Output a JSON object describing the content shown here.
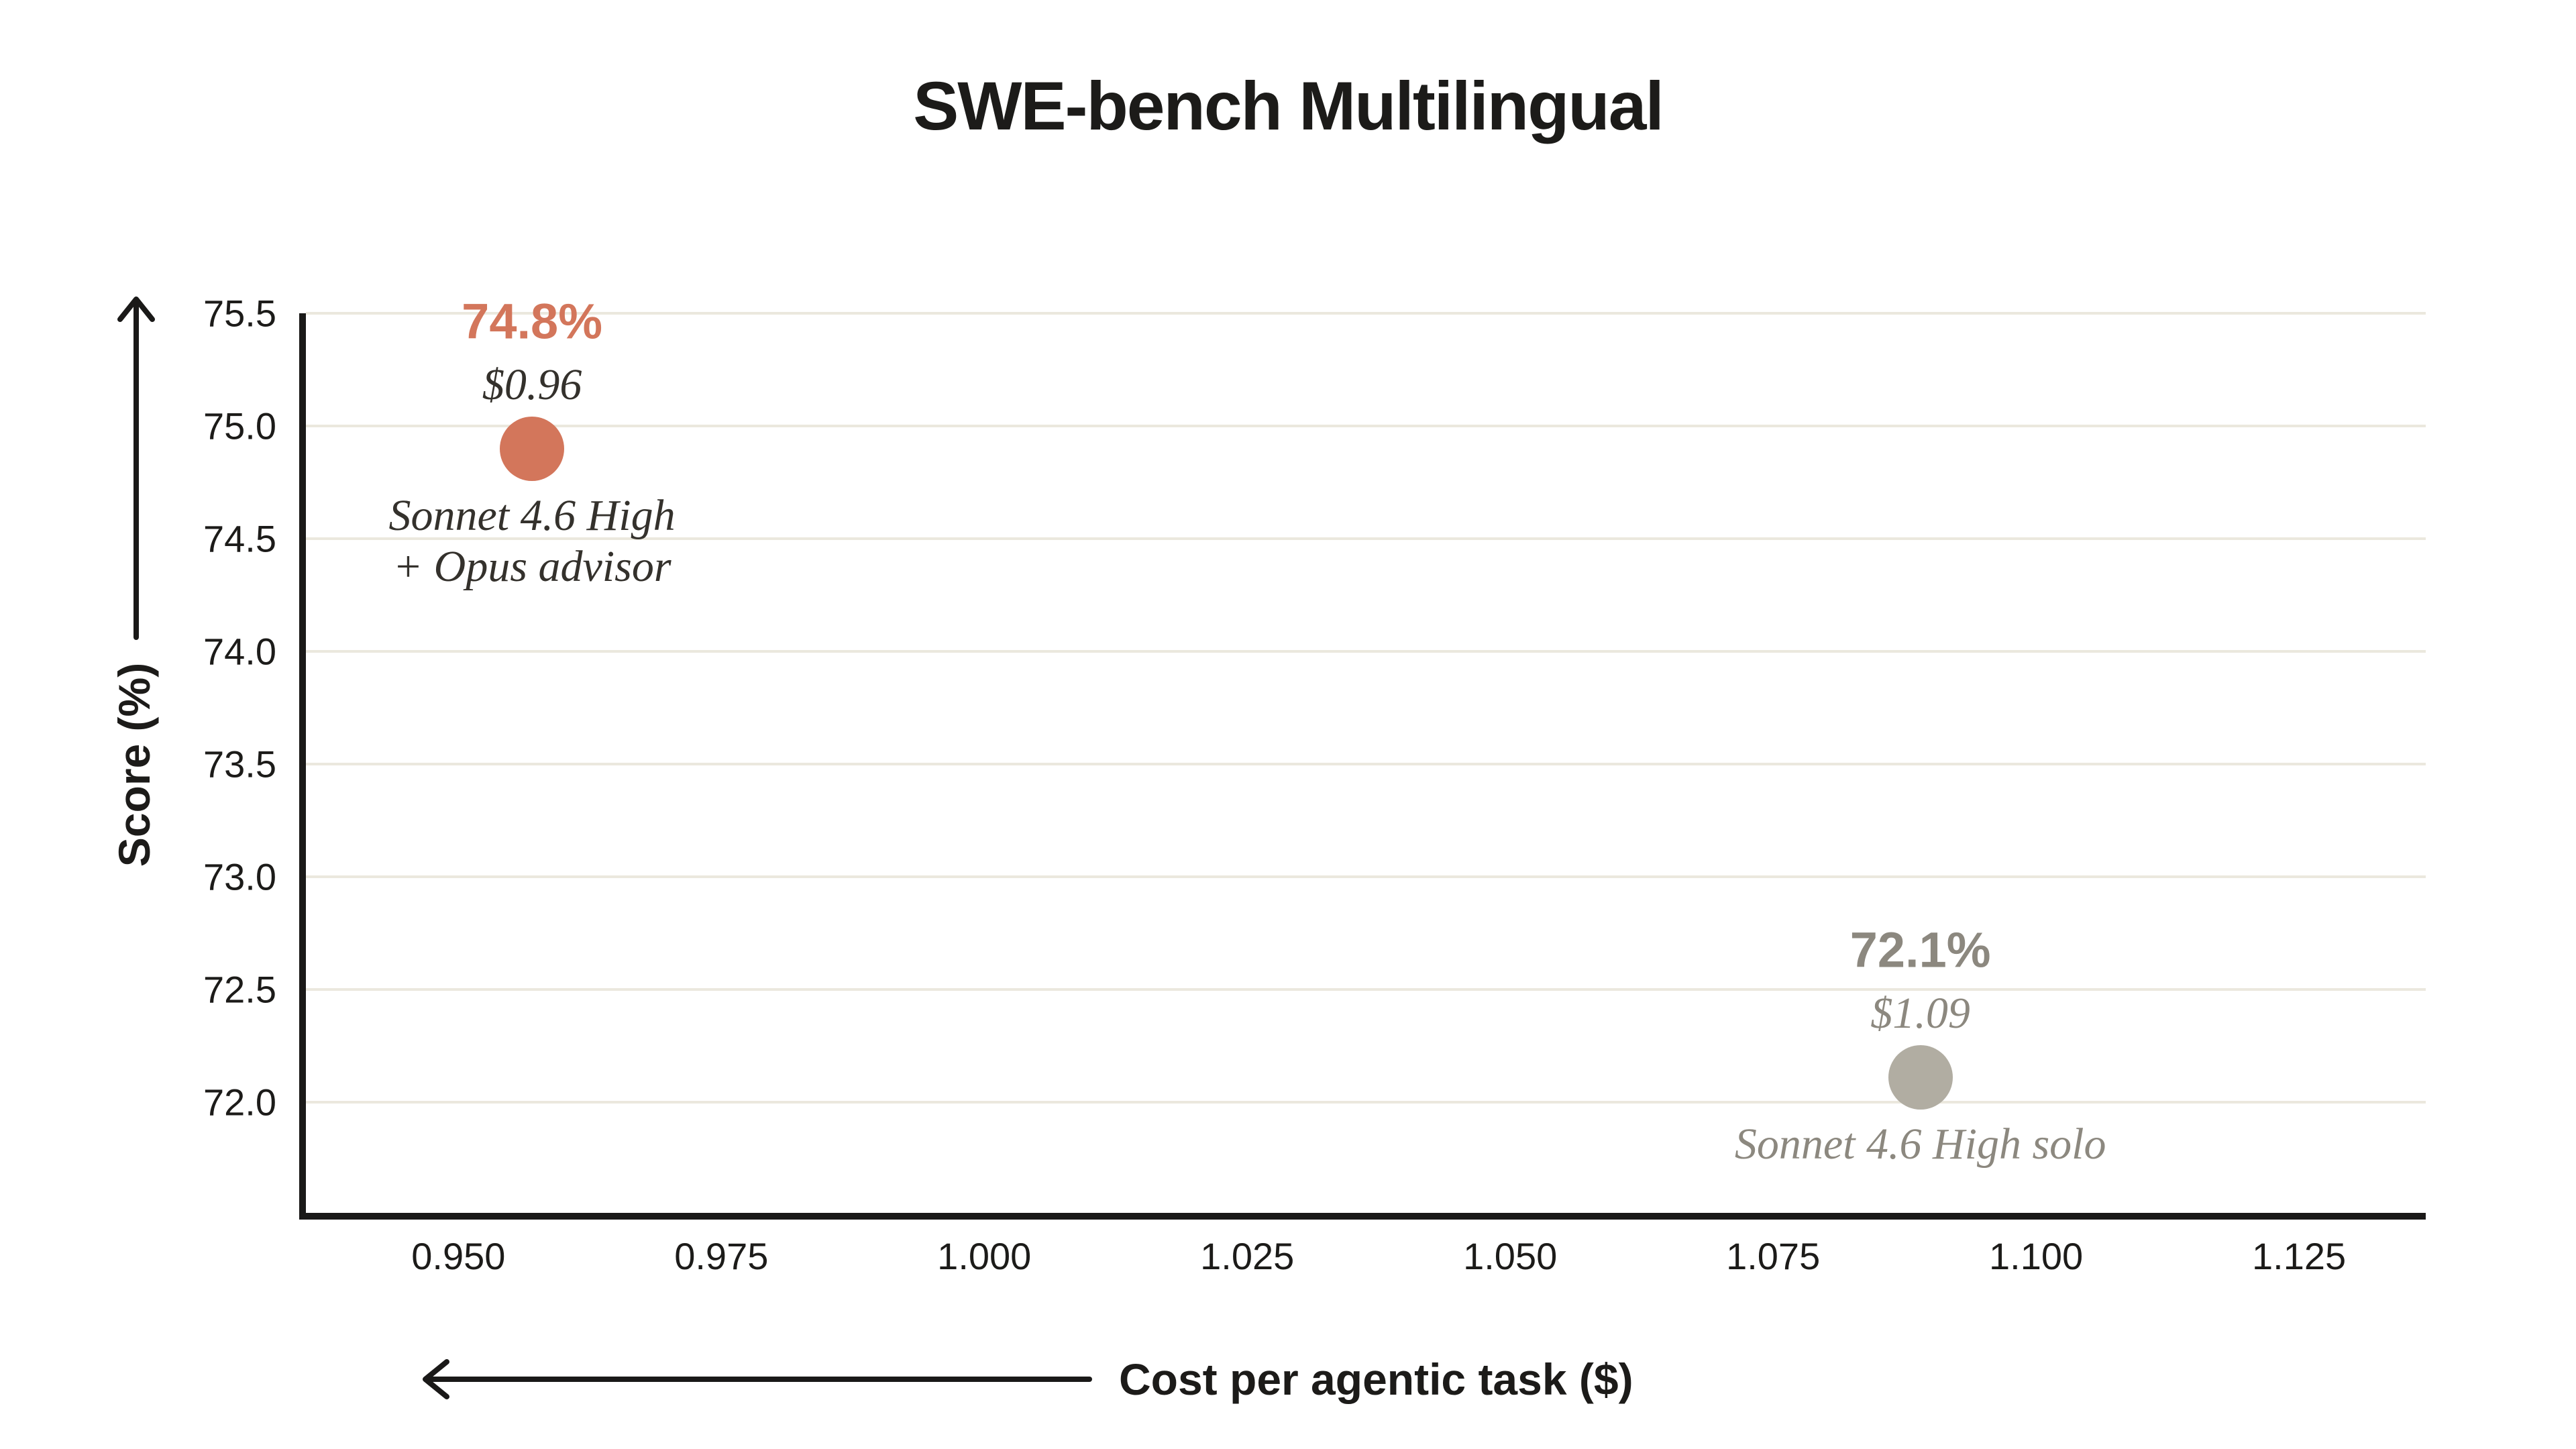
{
  "colors": {
    "background": "#ffffff",
    "ink": "#1c1b19",
    "axis_line": "#1a1918",
    "gridline": "#ebe8de",
    "orange": "#d3765b",
    "dark_serif_text": "#34312c",
    "gray_text": "#8c887f",
    "gray_dot": "#b1ada2"
  },
  "chart_data": {
    "type": "scatter",
    "title": "SWE-bench Multilingual",
    "xlabel": "Cost per agentic task ($)",
    "ylabel": "Score (%)",
    "x_arrow_direction": "left",
    "y_arrow_direction": "up",
    "grid": "horizontal",
    "legend": "none",
    "xlim": [
      0.9355,
      1.13705
    ],
    "ylim": [
      71.51,
      75.5
    ],
    "x_ticks": [
      {
        "label": "0.950",
        "value": 0.95
      },
      {
        "label": "0.975",
        "value": 0.975
      },
      {
        "label": "1.000",
        "value": 1.0
      },
      {
        "label": "1.025",
        "value": 1.025
      },
      {
        "label": "1.050",
        "value": 1.05
      },
      {
        "label": "1.075",
        "value": 1.075
      },
      {
        "label": "1.100",
        "value": 1.1
      },
      {
        "label": "1.125",
        "value": 1.125
      }
    ],
    "y_ticks": [
      {
        "label": "75.5",
        "value": 75.5
      },
      {
        "label": "75.0",
        "value": 75.0
      },
      {
        "label": "74.5",
        "value": 74.5
      },
      {
        "label": "74.0",
        "value": 74.0
      },
      {
        "label": "73.5",
        "value": 73.5
      },
      {
        "label": "73.0",
        "value": 73.0
      },
      {
        "label": "72.5",
        "value": 72.5
      },
      {
        "label": "72.0",
        "value": 72.0
      }
    ],
    "points": [
      {
        "name": "Sonnet 4.6 High\n+ Opus advisor",
        "score_label": "74.8%",
        "cost_label": "$0.96",
        "score": 74.8,
        "cost": 0.96,
        "plot_score": 74.9,
        "plot_cost": 0.957,
        "dot_color": "#d3765b",
        "value_color": "#d3765b",
        "text_color": "#34312c"
      },
      {
        "name": "Sonnet 4.6 High solo",
        "score_label": "72.1%",
        "cost_label": "$1.09",
        "score": 72.1,
        "cost": 1.09,
        "plot_score": 72.11,
        "plot_cost": 1.089,
        "dot_color": "#b1ada2",
        "value_color": "#8c887f",
        "text_color": "#8c887f"
      }
    ]
  }
}
